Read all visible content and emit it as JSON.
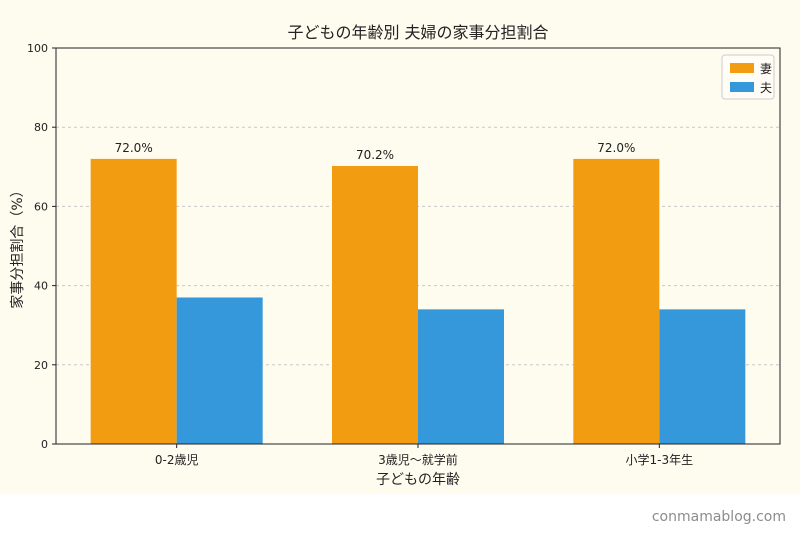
{
  "chart_data": {
    "type": "bar",
    "title": "子どもの年齢別 夫婦の家事分担割合",
    "xlabel": "子どもの年齢",
    "ylabel": "家事分担割合（%）",
    "categories": [
      "0-2歳児",
      "3歳児〜就学前",
      "小学1-3年生"
    ],
    "series": [
      {
        "name": "妻",
        "values": [
          72.0,
          70.2,
          72.0
        ],
        "labels": [
          "72.0%",
          "70.2%",
          "72.0%"
        ],
        "color": "#f29c12"
      },
      {
        "name": "夫",
        "values": [
          37.0,
          34.0,
          34.0
        ],
        "color": "#3498db"
      }
    ],
    "ylim": [
      0,
      100
    ],
    "yticks": [
      0,
      20,
      40,
      60,
      80,
      100
    ],
    "grid": true,
    "legend": "top-right"
  },
  "watermark": "conmamablog.com",
  "colors": {
    "background": "#fefbef",
    "grid": "#c8c8c8"
  }
}
